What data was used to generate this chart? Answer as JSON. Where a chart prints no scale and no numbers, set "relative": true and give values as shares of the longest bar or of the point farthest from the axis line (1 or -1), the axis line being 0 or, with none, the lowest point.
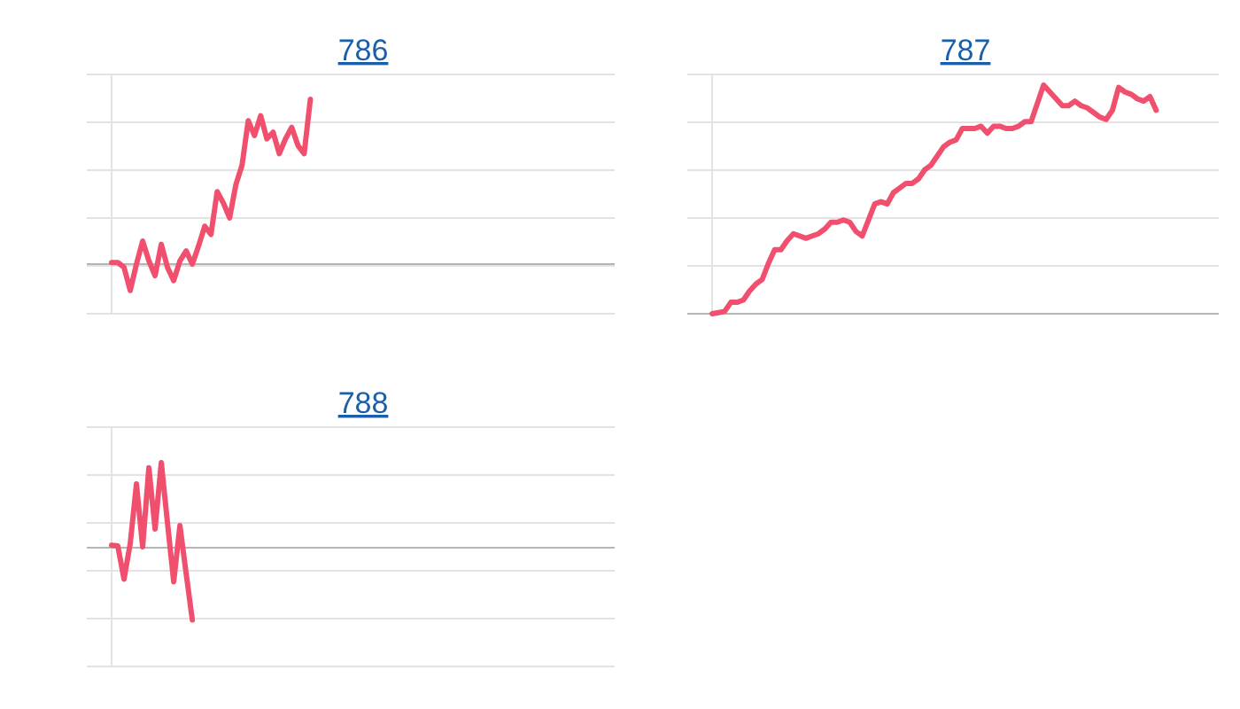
{
  "chart_data": [
    {
      "type": "line",
      "title": "786",
      "relative": true,
      "grid": true,
      "categories": [
        null,
        null,
        null,
        null,
        null,
        null,
        null,
        null,
        null,
        null,
        null,
        null,
        null,
        null,
        null,
        null,
        null,
        null,
        null,
        null,
        null,
        null,
        null,
        null,
        null,
        null,
        null,
        null,
        null,
        null,
        null,
        null,
        null,
        null,
        null,
        null,
        null,
        null,
        null,
        null,
        null,
        null,
        null,
        null,
        null,
        null,
        null,
        null,
        null,
        null,
        null,
        null,
        null,
        null,
        null,
        null,
        null,
        null,
        null,
        null,
        null,
        null,
        null,
        null,
        null,
        null,
        null,
        null,
        null,
        null,
        null,
        null,
        null,
        null,
        null,
        null,
        null,
        null,
        null,
        null,
        null,
        null
      ],
      "series": [
        {
          "color": "#f0506e",
          "values": [
            0.01,
            0.01,
            -0.02,
            -0.16,
            0,
            0.14,
            0.02,
            -0.07,
            0.12,
            -0.02,
            -0.1,
            0.02,
            0.08,
            0,
            0.11,
            0.23,
            0.18,
            0.44,
            0.37,
            0.28,
            0.48,
            0.6,
            0.87,
            0.78,
            0.9,
            0.76,
            0.8,
            0.67,
            0.76,
            0.83,
            0.72,
            0.67,
            1,
            null,
            null,
            null,
            null,
            null,
            null,
            null,
            null,
            null,
            null,
            null,
            null,
            null,
            null,
            null,
            null,
            null,
            null,
            null,
            null,
            null,
            null,
            null,
            null,
            null,
            null,
            null,
            null,
            null,
            null,
            null,
            null,
            null,
            null,
            null,
            null,
            null,
            null,
            null,
            null,
            null,
            null,
            null,
            null,
            null,
            null,
            null,
            null,
            null
          ]
        }
      ]
    },
    {
      "type": "line",
      "title": "787",
      "relative": true,
      "grid": true,
      "categories": [
        null,
        null,
        null,
        null,
        null,
        null,
        null,
        null,
        null,
        null,
        null,
        null,
        null,
        null,
        null,
        null,
        null,
        null,
        null,
        null,
        null,
        null,
        null,
        null,
        null,
        null,
        null,
        null,
        null,
        null,
        null,
        null,
        null,
        null,
        null,
        null,
        null,
        null,
        null,
        null,
        null,
        null,
        null,
        null,
        null,
        null,
        null,
        null,
        null,
        null,
        null,
        null,
        null,
        null,
        null,
        null,
        null,
        null,
        null,
        null,
        null,
        null,
        null,
        null,
        null,
        null,
        null,
        null,
        null,
        null,
        null,
        null,
        null,
        null,
        null,
        null,
        null,
        null,
        null,
        null,
        null,
        null
      ],
      "series": [
        {
          "color": "#f0506e",
          "values": [
            0,
            0.005,
            0.01,
            0.05,
            0.05,
            0.06,
            0.1,
            0.13,
            0.15,
            0.22,
            0.28,
            0.28,
            0.32,
            0.35,
            0.34,
            0.33,
            0.34,
            0.35,
            0.37,
            0.4,
            0.4,
            0.41,
            0.4,
            0.36,
            0.34,
            0.41,
            0.48,
            0.49,
            0.48,
            0.53,
            0.55,
            0.57,
            0.57,
            0.59,
            0.63,
            0.65,
            0.69,
            0.73,
            0.75,
            0.76,
            0.81,
            0.81,
            0.81,
            0.82,
            0.79,
            0.82,
            0.82,
            0.81,
            0.81,
            0.82,
            0.84,
            0.84,
            0.92,
            1,
            0.97,
            0.94,
            0.91,
            0.91,
            0.93,
            0.91,
            0.9,
            0.88,
            0.86,
            0.85,
            0.89,
            0.99,
            0.97,
            0.96,
            0.94,
            0.93,
            0.95,
            0.89,
            null,
            null,
            null,
            null,
            null,
            null,
            null,
            null,
            null,
            null
          ]
        }
      ]
    },
    {
      "type": "line",
      "title": "788",
      "relative": true,
      "grid": true,
      "categories": [
        null,
        null,
        null,
        null,
        null,
        null,
        null,
        null,
        null,
        null,
        null,
        null,
        null,
        null,
        null,
        null,
        null,
        null,
        null,
        null,
        null,
        null,
        null,
        null,
        null,
        null,
        null,
        null,
        null,
        null,
        null,
        null,
        null,
        null,
        null,
        null,
        null,
        null,
        null,
        null,
        null,
        null,
        null,
        null,
        null,
        null,
        null,
        null,
        null,
        null,
        null,
        null,
        null,
        null,
        null,
        null,
        null,
        null,
        null,
        null,
        null,
        null,
        null,
        null,
        null,
        null,
        null,
        null,
        null,
        null,
        null,
        null,
        null,
        null,
        null,
        null,
        null,
        null,
        null,
        null,
        null,
        null
      ],
      "series": [
        {
          "color": "#f0506e",
          "values": [
            0.03,
            0.02,
            -0.37,
            0.05,
            0.75,
            0.01,
            0.94,
            0.22,
            1,
            0.29,
            -0.4,
            0.26,
            -0.3,
            -0.85,
            null,
            null,
            null,
            null,
            null,
            null,
            null,
            null,
            null,
            null,
            null,
            null,
            null,
            null,
            null,
            null,
            null,
            null,
            null,
            null,
            null,
            null,
            null,
            null,
            null,
            null,
            null,
            null,
            null,
            null,
            null,
            null,
            null,
            null,
            null,
            null,
            null,
            null,
            null,
            null,
            null,
            null,
            null,
            null,
            null,
            null,
            null,
            null,
            null,
            null,
            null,
            null,
            null,
            null,
            null,
            null,
            null,
            null,
            null,
            null,
            null,
            null,
            null,
            null,
            null,
            null,
            null,
            null
          ]
        }
      ]
    }
  ]
}
